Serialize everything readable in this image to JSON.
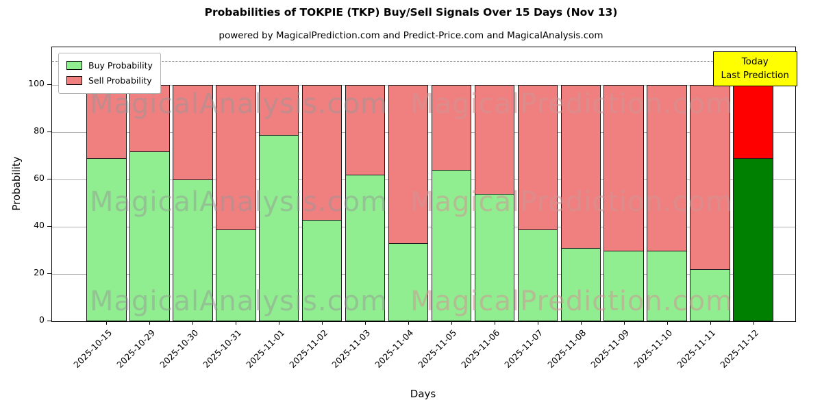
{
  "chart_data": {
    "type": "bar",
    "stacked": true,
    "title": "Probabilities of TOKPIE (TKP) Buy/Sell Signals Over 15 Days (Nov 13)",
    "subtitle": "powered by MagicalPrediction.com and Predict-Price.com and MagicalAnalysis.com",
    "xlabel": "Days",
    "ylabel": "Probability",
    "categories": [
      "2025-10-15",
      "2025-10-29",
      "2025-10-30",
      "2025-10-31",
      "2025-11-01",
      "2025-11-02",
      "2025-11-03",
      "2025-11-04",
      "2025-11-05",
      "2025-11-06",
      "2025-11-07",
      "2025-11-08",
      "2025-11-09",
      "2025-11-10",
      "2025-11-11",
      "2025-11-12"
    ],
    "series": [
      {
        "name": "Buy Probability",
        "color": "#90EE90",
        "last_bar_color": "#008000",
        "values": [
          69,
          72,
          60,
          39,
          79,
          43,
          62,
          33,
          64,
          54,
          39,
          31,
          30,
          30,
          22,
          69
        ]
      },
      {
        "name": "Sell Probability",
        "color": "#F08080",
        "last_bar_color": "#FF0000",
        "values": [
          31,
          28,
          40,
          61,
          21,
          57,
          38,
          67,
          36,
          46,
          61,
          69,
          70,
          70,
          78,
          31
        ]
      }
    ],
    "yticks": [
      0,
      20,
      40,
      60,
      80,
      100
    ],
    "ylim": [
      0,
      116
    ],
    "dashed_line_y": 110,
    "grid": "horizontal",
    "legend_position": "upper left",
    "bar_edge_color": "#1a1a1a"
  },
  "annotation": {
    "line1": "Today",
    "line2": "Last Prediction",
    "bg_color": "#FFFF00"
  },
  "watermarks": {
    "left": "MagicalAnalysis.com",
    "right": "MagicalPrediction.com"
  }
}
